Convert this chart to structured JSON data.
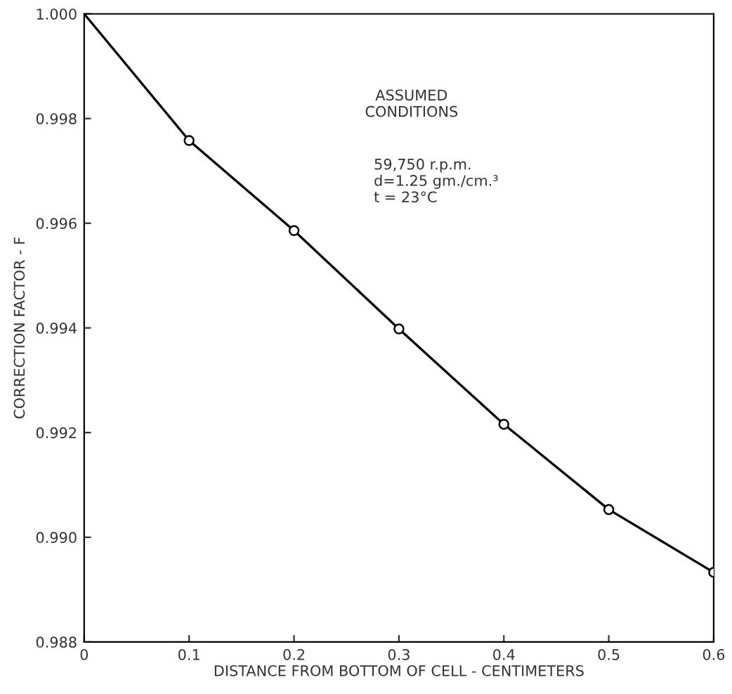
{
  "chart_data": {
    "type": "line",
    "xlabel": "DISTANCE FROM BOTTOM OF CELL - CENTIMETERS",
    "ylabel": "CORRECTION FACTOR - F",
    "x": [
      0,
      0.1,
      0.2,
      0.3,
      0.4,
      0.5,
      0.6
    ],
    "series": [
      {
        "color": "#000000",
        "marker": "none",
        "values": [
          1.0,
          0.99758,
          0.99586,
          0.99398,
          0.99216,
          0.99053,
          0.98933
        ]
      },
      {
        "type": "scatter",
        "color": "#000000",
        "marker": "circle",
        "x": [
          0.1,
          0.2,
          0.3,
          0.4,
          0.5,
          0.6
        ],
        "values": [
          0.99758,
          0.99586,
          0.99398,
          0.99216,
          0.99053,
          0.98933
        ]
      }
    ],
    "xlim": [
      0,
      0.6
    ],
    "xticks": [
      0,
      0.1,
      0.2,
      0.3,
      0.4,
      0.5,
      0.6
    ],
    "ylim": [
      0.988,
      1.0
    ],
    "yticks": [
      {
        "value": 0.988,
        "label": "0.988"
      },
      {
        "value": 0.99,
        "label": "0.990"
      },
      {
        "value": 0.992,
        "label": "0.992"
      },
      {
        "value": 0.994,
        "label": "0.994"
      },
      {
        "value": 0.996,
        "label": "0.996"
      },
      {
        "value": 0.998,
        "label": "0.998"
      },
      {
        "value": 1.0,
        "label": "1.000"
      }
    ],
    "grid": false,
    "legend": false,
    "annotations": [
      "ASSUMED\nCONDITIONS",
      "59,750 r.p.m.\nd=1.25 gm./cm.³\nt = 23°C"
    ]
  }
}
